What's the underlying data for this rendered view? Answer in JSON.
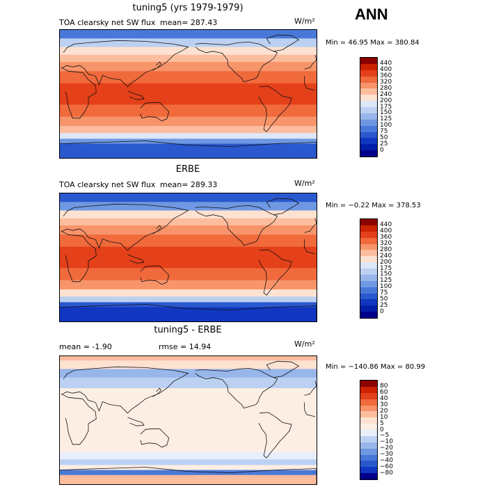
{
  "season_label": "ANN",
  "panels": [
    {
      "id": "model",
      "title": "tuning5 (yrs 1979-1979)",
      "subtitle": "TOA clearsky net SW flux",
      "mean_text": "mean= 287.43",
      "unit": "W/m²",
      "minmax_text": "Min =  46.95 Max = 380.84",
      "colorbar": {
        "labels": [
          "440",
          "400",
          "360",
          "320",
          "280",
          "240",
          "200",
          "175",
          "150",
          "125",
          "100",
          "75",
          "50",
          "25",
          "0"
        ],
        "colors": [
          "#8b0000",
          "#cc2200",
          "#e4401a",
          "#f06a3c",
          "#f7946a",
          "#fbbd9e",
          "#fde1d1",
          "#dde7f7",
          "#bcd1f2",
          "#97b6ea",
          "#6f98e2",
          "#4a78d8",
          "#2a58ce",
          "#1136c0",
          "#001ea8",
          "#00008b"
        ]
      },
      "bands": [
        {
          "lat_north": 90,
          "lat_south": 78,
          "value": 90
        },
        {
          "lat_north": 78,
          "lat_south": 66,
          "value": 160
        },
        {
          "lat_north": 66,
          "lat_south": 55,
          "value": 215
        },
        {
          "lat_north": 55,
          "lat_south": 45,
          "value": 260
        },
        {
          "lat_north": 45,
          "lat_south": 32,
          "value": 310
        },
        {
          "lat_north": 32,
          "lat_south": 15,
          "value": 350
        },
        {
          "lat_north": 15,
          "lat_south": -15,
          "value": 365
        },
        {
          "lat_north": -15,
          "lat_south": -32,
          "value": 350
        },
        {
          "lat_north": -32,
          "lat_south": -45,
          "value": 300
        },
        {
          "lat_north": -45,
          "lat_south": -55,
          "value": 240
        },
        {
          "lat_north": -55,
          "lat_south": -63,
          "value": 180
        },
        {
          "lat_north": -63,
          "lat_south": -70,
          "value": 120
        },
        {
          "lat_north": -70,
          "lat_south": -90,
          "value": 60
        }
      ]
    },
    {
      "id": "obs",
      "title": "ERBE",
      "subtitle": "TOA clearsky net SW flux",
      "mean_text": "mean= 289.33",
      "unit": "W/m²",
      "minmax_text": "Min =  −0.22 Max = 378.53",
      "colorbar": {
        "labels": [
          "440",
          "400",
          "360",
          "320",
          "280",
          "240",
          "200",
          "175",
          "150",
          "125",
          "100",
          "75",
          "50",
          "25",
          "0"
        ],
        "colors": [
          "#8b0000",
          "#cc2200",
          "#e4401a",
          "#f06a3c",
          "#f7946a",
          "#fbbd9e",
          "#fde1d1",
          "#dde7f7",
          "#bcd1f2",
          "#97b6ea",
          "#6f98e2",
          "#4a78d8",
          "#2a58ce",
          "#1136c0",
          "#001ea8",
          "#00008b"
        ]
      },
      "bands": [
        {
          "lat_north": 90,
          "lat_south": 78,
          "value": 60
        },
        {
          "lat_north": 78,
          "lat_south": 66,
          "value": 110
        },
        {
          "lat_north": 66,
          "lat_south": 55,
          "value": 200
        },
        {
          "lat_north": 55,
          "lat_south": 45,
          "value": 255
        },
        {
          "lat_north": 45,
          "lat_south": 32,
          "value": 310
        },
        {
          "lat_north": 32,
          "lat_south": 15,
          "value": 350
        },
        {
          "lat_north": 15,
          "lat_south": -15,
          "value": 365
        },
        {
          "lat_north": -15,
          "lat_south": -32,
          "value": 345
        },
        {
          "lat_north": -32,
          "lat_south": -45,
          "value": 295
        },
        {
          "lat_north": -45,
          "lat_south": -55,
          "value": 230
        },
        {
          "lat_north": -55,
          "lat_south": -63,
          "value": 160
        },
        {
          "lat_north": -63,
          "lat_south": -70,
          "value": 70
        },
        {
          "lat_north": -70,
          "lat_south": -90,
          "value": 30
        }
      ]
    },
    {
      "id": "diff",
      "title": "tuning5 - ERBE",
      "subtitle": "mean =   -1.90",
      "mean_text": "rmse =   14.94",
      "unit": "W/m²",
      "minmax_text": "Min = −140.86 Max =  80.99",
      "colorbar": {
        "labels": [
          "80",
          "60",
          "40",
          "30",
          "20",
          "10",
          "5",
          "0",
          "−5",
          "−10",
          "−20",
          "−30",
          "−40",
          "−60",
          "−80"
        ],
        "colors": [
          "#8b0000",
          "#cc2200",
          "#e4401a",
          "#f06a3c",
          "#f7946a",
          "#fbbd9e",
          "#fde1d1",
          "#fdeee4",
          "#e8eefb",
          "#bcd1f2",
          "#97b6ea",
          "#6f98e2",
          "#4a78d8",
          "#2a58ce",
          "#1136c0",
          "#00008b"
        ]
      },
      "bands": [
        {
          "lat_north": 90,
          "lat_south": 84,
          "value": 10
        },
        {
          "lat_north": 84,
          "lat_south": 72,
          "value": 5
        },
        {
          "lat_north": 72,
          "lat_south": 60,
          "value": -12
        },
        {
          "lat_north": 60,
          "lat_south": 45,
          "value": -6
        },
        {
          "lat_north": 45,
          "lat_south": -45,
          "value": 2
        },
        {
          "lat_north": -45,
          "lat_south": -55,
          "value": -4
        },
        {
          "lat_north": -55,
          "lat_south": -63,
          "value": -10
        },
        {
          "lat_north": -63,
          "lat_south": -70,
          "value": 3
        },
        {
          "lat_north": -70,
          "lat_south": -77,
          "value": -40
        },
        {
          "lat_north": -77,
          "lat_south": -90,
          "value": 10
        }
      ]
    }
  ]
}
